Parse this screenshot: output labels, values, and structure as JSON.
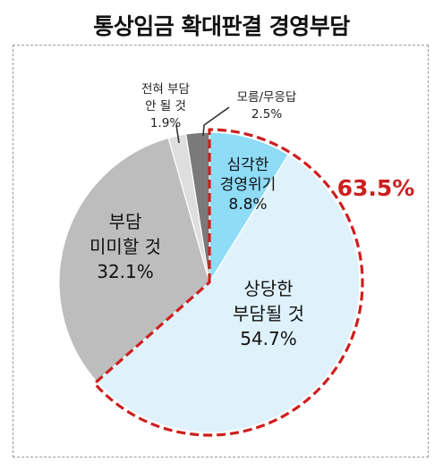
{
  "title": "통상임금 확대판결 경영부담",
  "highlight_label": "63.5%",
  "chart_data": {
    "type": "pie",
    "title": "통상임금 확대판결 경영부담",
    "slices": [
      {
        "label_lines": [
          "심각한",
          "경영위기"
        ],
        "value_text": "8.8%",
        "value": 8.8,
        "color": "#8fdcf6",
        "highlight": true
      },
      {
        "label_lines": [
          "상당한",
          "부담될 것"
        ],
        "value_text": "54.7%",
        "value": 54.7,
        "color": "#dff2fc",
        "highlight": true
      },
      {
        "label_lines": [
          "부담",
          "미미할 것"
        ],
        "value_text": "32.1%",
        "value": 32.1,
        "color": "#bdbdbd",
        "highlight": false
      },
      {
        "label_lines": [
          "전혀 부담",
          "안 될 것"
        ],
        "value_text": "1.9%",
        "value": 1.9,
        "color": "#dedede",
        "highlight": false
      },
      {
        "label_lines": [
          "모름/무응답"
        ],
        "value_text": "2.5%",
        "value": 2.5,
        "color": "#7a7a7a",
        "highlight": false
      }
    ],
    "highlight_group": {
      "label": "63.5%",
      "color": "#cc1f1f"
    }
  }
}
